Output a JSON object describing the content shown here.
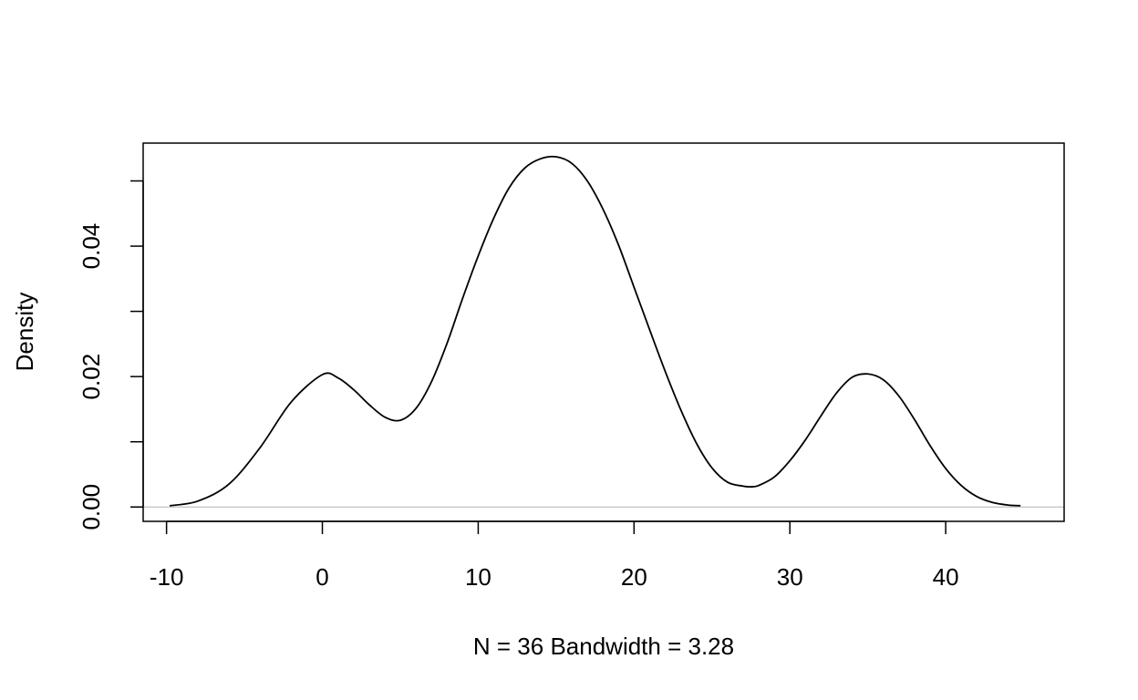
{
  "chart_data": {
    "type": "line",
    "title": "",
    "xlabel": "N = 36   Bandwidth = 3.28",
    "ylabel": "Density",
    "xlim": [
      -11.5,
      47.6
    ],
    "ylim": [
      -0.0022,
      0.0558
    ],
    "x_ticks": [
      -10,
      0,
      10,
      20,
      30,
      40
    ],
    "y_ticks": [
      0.0,
      0.01,
      0.02,
      0.03,
      0.04,
      0.05
    ],
    "y_tick_labels": {
      "0": "0.00",
      "0.02": "0.02",
      "0.04": "0.04"
    },
    "grid": false,
    "baseline": 0,
    "baseline_color": "#c0c0c0",
    "line_color": "#000000",
    "series": [
      {
        "x": [
          -9.8,
          -8,
          -6,
          -4,
          -2,
          0,
          1,
          2,
          3,
          4,
          5,
          6,
          7,
          8,
          9,
          10,
          11,
          12,
          13,
          14,
          15,
          16,
          17,
          18,
          19,
          20,
          21,
          22,
          23,
          24,
          25,
          26,
          27,
          27.5,
          28,
          29,
          30,
          31,
          32,
          33,
          34,
          35,
          36,
          37,
          38,
          39,
          40,
          41,
          42,
          43,
          44,
          44.8
        ],
        "y": [
          0.0002,
          0.0009,
          0.0035,
          0.0091,
          0.0161,
          0.0203,
          0.0198,
          0.018,
          0.0157,
          0.0138,
          0.0133,
          0.0151,
          0.0192,
          0.0251,
          0.032,
          0.0385,
          0.0443,
          0.049,
          0.052,
          0.0534,
          0.0537,
          0.0527,
          0.05,
          0.0457,
          0.0402,
          0.0337,
          0.0272,
          0.0208,
          0.0149,
          0.0098,
          0.006,
          0.0038,
          0.0032,
          0.0031,
          0.0033,
          0.0046,
          0.0071,
          0.0103,
          0.014,
          0.0175,
          0.0199,
          0.0204,
          0.0195,
          0.017,
          0.0134,
          0.0094,
          0.0059,
          0.0033,
          0.0016,
          0.0007,
          0.0003,
          0.0002
        ]
      }
    ]
  }
}
